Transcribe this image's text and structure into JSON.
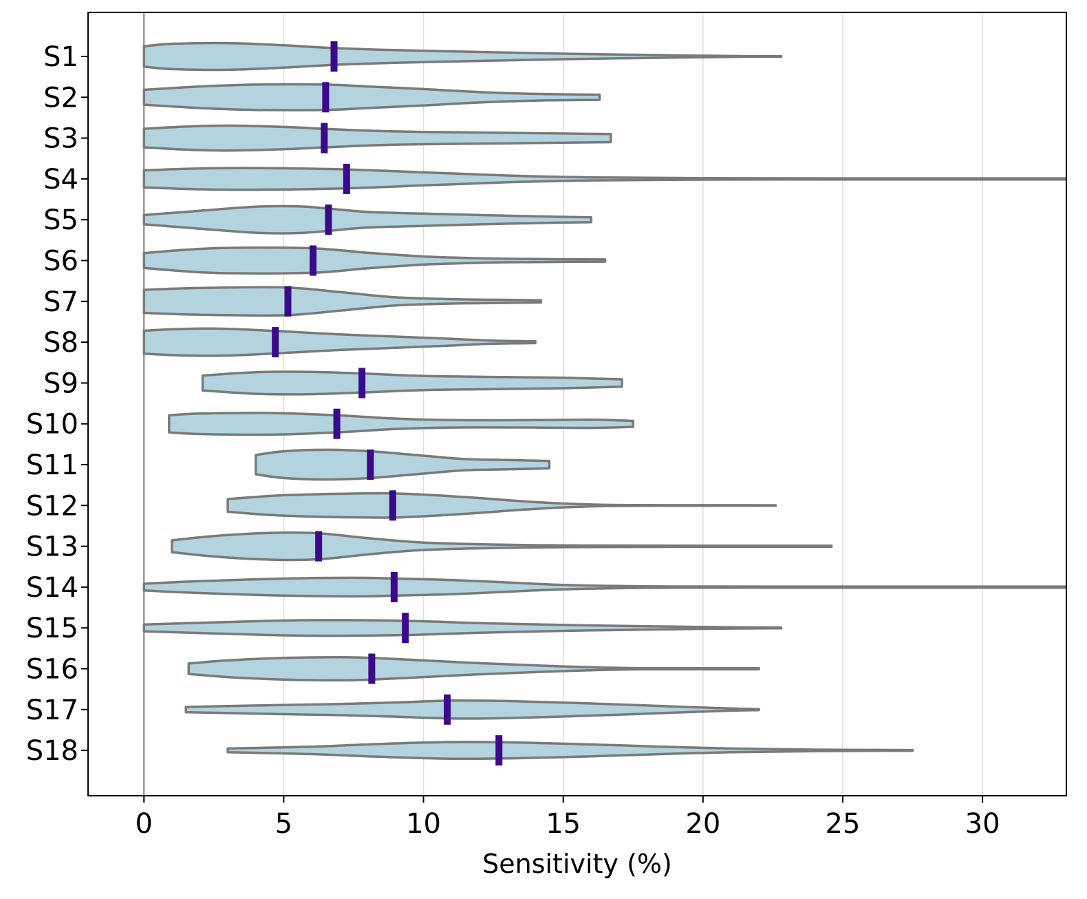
{
  "chart_data": {
    "type": "violin",
    "orientation": "horizontal",
    "title": "",
    "xlabel": "Sensitivity (%)",
    "ylabel": "",
    "xlim": [
      -2,
      33
    ],
    "xticks": [
      0,
      5,
      10,
      15,
      20,
      25,
      30
    ],
    "xtick_labels": [
      "0",
      "5",
      "10",
      "15",
      "20",
      "25",
      "30"
    ],
    "grid": "vertical",
    "reference_line_x": 0,
    "colors": {
      "violin_fill": "#b3d4df",
      "violin_edge": "#7a7a7a",
      "median": "#3a0a8a",
      "grid": "#dddddd",
      "refline": "#999999"
    },
    "categories": [
      "S1",
      "S2",
      "S3",
      "S4",
      "S5",
      "S6",
      "S7",
      "S8",
      "S9",
      "S10",
      "S11",
      "S12",
      "S13",
      "S14",
      "S15",
      "S16",
      "S17",
      "S18"
    ],
    "series": [
      {
        "name": "S1",
        "median": 6.8,
        "profile": [
          [
            0,
            0.55
          ],
          [
            1,
            0.68
          ],
          [
            3,
            0.72
          ],
          [
            5,
            0.6
          ],
          [
            6.8,
            0.45
          ],
          [
            9,
            0.34
          ],
          [
            12,
            0.24
          ],
          [
            15,
            0.15
          ],
          [
            18,
            0.08
          ],
          [
            20,
            0.04
          ],
          [
            21.5,
            0.015
          ],
          [
            22.8,
            0.01
          ]
        ]
      },
      {
        "name": "S2",
        "median": 6.5,
        "profile": [
          [
            0,
            0.4
          ],
          [
            2,
            0.58
          ],
          [
            4,
            0.68
          ],
          [
            6.5,
            0.68
          ],
          [
            8,
            0.58
          ],
          [
            10,
            0.44
          ],
          [
            12,
            0.28
          ],
          [
            14,
            0.18
          ],
          [
            16.3,
            0.14
          ]
        ]
      },
      {
        "name": "S3",
        "median": 6.45,
        "profile": [
          [
            0,
            0.5
          ],
          [
            1.5,
            0.62
          ],
          [
            3,
            0.67
          ],
          [
            5,
            0.6
          ],
          [
            6.45,
            0.5
          ],
          [
            8,
            0.4
          ],
          [
            10,
            0.33
          ],
          [
            13,
            0.28
          ],
          [
            16.7,
            0.22
          ]
        ]
      },
      {
        "name": "S4",
        "median": 7.25,
        "profile": [
          [
            0,
            0.46
          ],
          [
            2,
            0.56
          ],
          [
            4,
            0.58
          ],
          [
            7,
            0.52
          ],
          [
            10,
            0.35
          ],
          [
            13,
            0.18
          ],
          [
            16,
            0.08
          ],
          [
            20,
            0.04
          ],
          [
            25,
            0.03
          ],
          [
            33,
            0.03
          ]
        ]
      },
      {
        "name": "S5",
        "median": 6.6,
        "profile": [
          [
            0,
            0.25
          ],
          [
            2,
            0.48
          ],
          [
            4,
            0.7
          ],
          [
            5.5,
            0.72
          ],
          [
            6.6,
            0.6
          ],
          [
            8,
            0.42
          ],
          [
            10,
            0.33
          ],
          [
            12,
            0.25
          ],
          [
            14,
            0.18
          ],
          [
            16,
            0.13
          ]
        ]
      },
      {
        "name": "S6",
        "median": 6.05,
        "profile": [
          [
            0,
            0.4
          ],
          [
            1.5,
            0.58
          ],
          [
            3,
            0.68
          ],
          [
            6,
            0.66
          ],
          [
            8,
            0.42
          ],
          [
            10,
            0.22
          ],
          [
            12,
            0.12
          ],
          [
            14,
            0.08
          ],
          [
            16.5,
            0.06
          ]
        ]
      },
      {
        "name": "S7",
        "median": 5.15,
        "profile": [
          [
            0,
            0.62
          ],
          [
            2,
            0.72
          ],
          [
            5,
            0.75
          ],
          [
            7,
            0.5
          ],
          [
            9,
            0.22
          ],
          [
            11,
            0.12
          ],
          [
            13,
            0.08
          ],
          [
            14.2,
            0.06
          ]
        ]
      },
      {
        "name": "S8",
        "median": 4.7,
        "profile": [
          [
            0,
            0.62
          ],
          [
            1.5,
            0.72
          ],
          [
            3,
            0.72
          ],
          [
            5,
            0.58
          ],
          [
            7,
            0.42
          ],
          [
            9,
            0.3
          ],
          [
            11,
            0.18
          ],
          [
            12.5,
            0.08
          ],
          [
            14,
            0.05
          ]
        ]
      },
      {
        "name": "S9",
        "median": 7.8,
        "profile": [
          [
            2.1,
            0.4
          ],
          [
            4,
            0.58
          ],
          [
            6,
            0.6
          ],
          [
            8,
            0.5
          ],
          [
            10,
            0.38
          ],
          [
            13,
            0.32
          ],
          [
            15,
            0.28
          ],
          [
            17.1,
            0.2
          ]
        ]
      },
      {
        "name": "S10",
        "median": 6.9,
        "profile": [
          [
            0.9,
            0.46
          ],
          [
            2,
            0.55
          ],
          [
            4.5,
            0.58
          ],
          [
            6.9,
            0.46
          ],
          [
            9,
            0.28
          ],
          [
            11,
            0.2
          ],
          [
            14,
            0.2
          ],
          [
            16,
            0.22
          ],
          [
            17.5,
            0.16
          ]
        ]
      },
      {
        "name": "S11",
        "median": 8.1,
        "profile": [
          [
            4,
            0.52
          ],
          [
            5,
            0.72
          ],
          [
            6.5,
            0.8
          ],
          [
            8.1,
            0.72
          ],
          [
            10,
            0.48
          ],
          [
            11.5,
            0.3
          ],
          [
            13,
            0.25
          ],
          [
            14.5,
            0.2
          ]
        ]
      },
      {
        "name": "S12",
        "median": 8.9,
        "profile": [
          [
            3,
            0.34
          ],
          [
            5,
            0.55
          ],
          [
            8,
            0.65
          ],
          [
            9.5,
            0.62
          ],
          [
            11.5,
            0.45
          ],
          [
            14,
            0.18
          ],
          [
            16,
            0.05
          ],
          [
            18,
            0.02
          ],
          [
            20,
            0.015
          ],
          [
            22.6,
            0.01
          ]
        ]
      },
      {
        "name": "S13",
        "median": 6.25,
        "profile": [
          [
            1,
            0.32
          ],
          [
            2.5,
            0.55
          ],
          [
            4.5,
            0.72
          ],
          [
            6.25,
            0.7
          ],
          [
            8,
            0.44
          ],
          [
            10,
            0.2
          ],
          [
            13,
            0.08
          ],
          [
            16,
            0.04
          ],
          [
            20,
            0.03
          ],
          [
            24.6,
            0.03
          ]
        ]
      },
      {
        "name": "S14",
        "median": 8.95,
        "profile": [
          [
            0,
            0.18
          ],
          [
            2,
            0.32
          ],
          [
            5,
            0.46
          ],
          [
            7.5,
            0.5
          ],
          [
            9,
            0.46
          ],
          [
            11,
            0.38
          ],
          [
            13,
            0.25
          ],
          [
            15,
            0.12
          ],
          [
            18,
            0.04
          ],
          [
            22,
            0.03
          ],
          [
            33,
            0.03
          ]
        ]
      },
      {
        "name": "S15",
        "median": 9.35,
        "profile": [
          [
            0,
            0.18
          ],
          [
            3,
            0.32
          ],
          [
            6,
            0.42
          ],
          [
            9.35,
            0.38
          ],
          [
            12,
            0.26
          ],
          [
            15,
            0.16
          ],
          [
            18,
            0.09
          ],
          [
            20,
            0.05
          ],
          [
            21.5,
            0.03
          ],
          [
            22.8,
            0.02
          ]
        ]
      },
      {
        "name": "S16",
        "median": 8.15,
        "profile": [
          [
            1.6,
            0.28
          ],
          [
            3,
            0.45
          ],
          [
            5,
            0.58
          ],
          [
            7,
            0.62
          ],
          [
            8.15,
            0.58
          ],
          [
            10,
            0.45
          ],
          [
            12,
            0.3
          ],
          [
            14,
            0.18
          ],
          [
            16,
            0.08
          ],
          [
            18,
            0.03
          ],
          [
            22,
            0.03
          ]
        ]
      },
      {
        "name": "S17",
        "median": 10.85,
        "profile": [
          [
            1.5,
            0.14
          ],
          [
            4,
            0.22
          ],
          [
            7,
            0.3
          ],
          [
            9,
            0.38
          ],
          [
            11,
            0.48
          ],
          [
            13,
            0.46
          ],
          [
            15.5,
            0.35
          ],
          [
            18,
            0.22
          ],
          [
            20.5,
            0.08
          ],
          [
            22,
            0.03
          ]
        ]
      },
      {
        "name": "S18",
        "median": 12.7,
        "profile": [
          [
            3,
            0.1
          ],
          [
            6,
            0.2
          ],
          [
            8,
            0.32
          ],
          [
            10,
            0.42
          ],
          [
            11.5,
            0.45
          ],
          [
            13.5,
            0.42
          ],
          [
            16,
            0.32
          ],
          [
            18.5,
            0.2
          ],
          [
            21,
            0.1
          ],
          [
            24,
            0.04
          ],
          [
            27.5,
            0.02
          ]
        ]
      }
    ]
  }
}
